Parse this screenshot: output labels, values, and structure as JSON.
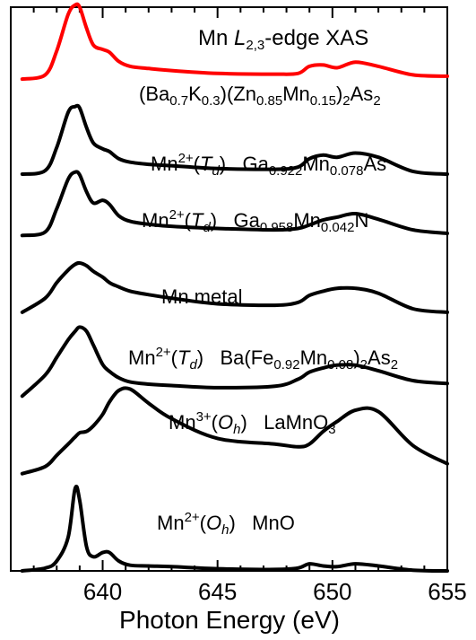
{
  "chart_data": {
    "type": "line",
    "title": {
      "element": "Mn",
      "edge_symbol": "L",
      "edge_sub": "2,3",
      "suffix": "-edge XAS"
    },
    "xlabel": "Photon Energy (eV)",
    "ylabel": "",
    "xlim": [
      636,
      655
    ],
    "ylim": [
      0,
      8
    ],
    "yticks_shown": false,
    "xticks": [
      640,
      645,
      650,
      655
    ],
    "xtick_labels": [
      "640",
      "645",
      "650",
      "655"
    ],
    "x": [
      636.5,
      637.5,
      638.0,
      638.5,
      638.8,
      639.0,
      639.3,
      639.6,
      640.0,
      640.3,
      640.7,
      641.2,
      642.0,
      643.0,
      645.0,
      647.5,
      648.5,
      649.0,
      649.6,
      650.2,
      651.0,
      652.0,
      653.5,
      655.0
    ],
    "series": [
      {
        "name": "(Ba0.7K0.3)(Zn0.85Mn0.15)2As2",
        "color": "#ff0000",
        "offset": 6.98,
        "values": [
          0.0,
          0.06,
          0.4,
          0.92,
          1.05,
          1.02,
          0.72,
          0.48,
          0.42,
          0.38,
          0.25,
          0.18,
          0.15,
          0.12,
          0.08,
          0.07,
          0.08,
          0.18,
          0.2,
          0.16,
          0.24,
          0.18,
          0.06,
          0.04
        ]
      },
      {
        "name": "Ga0.922Mn0.078As",
        "color": "#000000",
        "offset": 5.63,
        "values": [
          0.0,
          0.05,
          0.38,
          0.88,
          0.96,
          0.94,
          0.66,
          0.44,
          0.36,
          0.32,
          0.22,
          0.17,
          0.14,
          0.12,
          0.08,
          0.07,
          0.1,
          0.22,
          0.27,
          0.24,
          0.3,
          0.24,
          0.04,
          0.0
        ]
      },
      {
        "name": "Ga0.958Mn0.042N",
        "color": "#000000",
        "offset": 4.76,
        "values": [
          0.0,
          0.05,
          0.38,
          0.8,
          0.9,
          0.86,
          0.62,
          0.46,
          0.5,
          0.44,
          0.28,
          0.2,
          0.16,
          0.13,
          0.1,
          0.08,
          0.1,
          0.15,
          0.22,
          0.26,
          0.31,
          0.23,
          0.08,
          0.03
        ]
      },
      {
        "name": "Mn metal",
        "color": "#000000",
        "offset": 3.67,
        "values": [
          0.0,
          0.2,
          0.42,
          0.6,
          0.68,
          0.7,
          0.66,
          0.58,
          0.5,
          0.42,
          0.36,
          0.3,
          0.25,
          0.2,
          0.12,
          0.1,
          0.14,
          0.24,
          0.3,
          0.34,
          0.34,
          0.27,
          0.05,
          0.0
        ]
      },
      {
        "name": "Ba(Fe0.92Mn0.08)2As2",
        "color": "#000000",
        "offset": 2.48,
        "values": [
          0.0,
          0.3,
          0.55,
          0.8,
          0.92,
          0.98,
          0.92,
          0.72,
          0.45,
          0.35,
          0.26,
          0.2,
          0.17,
          0.15,
          0.12,
          0.14,
          0.24,
          0.34,
          0.4,
          0.44,
          0.44,
          0.36,
          0.22,
          0.18
        ]
      },
      {
        "name": "LaMnO3",
        "color": "#000000",
        "offset": 1.38,
        "values": [
          0.0,
          0.1,
          0.26,
          0.42,
          0.52,
          0.58,
          0.6,
          0.68,
          0.84,
          1.02,
          1.18,
          1.2,
          1.0,
          0.78,
          0.5,
          0.42,
          0.38,
          0.42,
          0.6,
          0.74,
          0.9,
          0.88,
          0.4,
          0.14
        ]
      },
      {
        "name": "MnO",
        "color": "#000000",
        "offset": 0.0,
        "values": [
          0.0,
          0.04,
          0.14,
          0.48,
          1.17,
          1.0,
          0.34,
          0.2,
          0.26,
          0.26,
          0.14,
          0.08,
          0.07,
          0.06,
          0.03,
          0.02,
          0.04,
          0.1,
          0.07,
          0.06,
          0.1,
          0.07,
          0.01,
          0.0
        ]
      }
    ],
    "annotations": [
      {
        "parts": [
          {
            "t": "(Ba"
          },
          {
            "t": "0.7",
            "k": "sub"
          },
          {
            "t": "K"
          },
          {
            "t": "0.3",
            "k": "sub"
          },
          {
            "t": ")(Zn"
          },
          {
            "t": "0.85",
            "k": "sub"
          },
          {
            "t": "Mn"
          },
          {
            "t": "0.15",
            "k": "sub"
          },
          {
            "t": ")"
          },
          {
            "t": "2",
            "k": "sub"
          },
          {
            "t": "As"
          },
          {
            "t": "2",
            "k": "sub"
          }
        ]
      },
      {
        "parts": [
          {
            "t": "Mn"
          },
          {
            "t": "2+",
            "k": "sup"
          },
          {
            "t": "("
          },
          {
            "t": "T",
            "k": "it"
          },
          {
            "t": "d",
            "k": "itsub"
          },
          {
            "t": ")   Ga"
          },
          {
            "t": "0.922",
            "k": "sub"
          },
          {
            "t": "Mn"
          },
          {
            "t": "0.078",
            "k": "sub"
          },
          {
            "t": "As"
          }
        ]
      },
      {
        "parts": [
          {
            "t": "Mn"
          },
          {
            "t": "2+",
            "k": "sup"
          },
          {
            "t": "("
          },
          {
            "t": "T",
            "k": "it"
          },
          {
            "t": "d",
            "k": "itsub"
          },
          {
            "t": ")   Ga"
          },
          {
            "t": "0.958",
            "k": "sub"
          },
          {
            "t": "Mn"
          },
          {
            "t": "0.042",
            "k": "sub"
          },
          {
            "t": "N"
          }
        ]
      },
      {
        "parts": [
          {
            "t": "Mn metal"
          }
        ]
      },
      {
        "parts": [
          {
            "t": "Mn"
          },
          {
            "t": "2+",
            "k": "sup"
          },
          {
            "t": "("
          },
          {
            "t": "T",
            "k": "it"
          },
          {
            "t": "d",
            "k": "itsub"
          },
          {
            "t": ")   Ba(Fe"
          },
          {
            "t": "0.92",
            "k": "sub"
          },
          {
            "t": "Mn"
          },
          {
            "t": "0.08",
            "k": "sub"
          },
          {
            "t": ")"
          },
          {
            "t": "2",
            "k": "sub"
          },
          {
            "t": "As"
          },
          {
            "t": "2",
            "k": "sub"
          }
        ]
      },
      {
        "parts": [
          {
            "t": "Mn"
          },
          {
            "t": "3+",
            "k": "sup"
          },
          {
            "t": "("
          },
          {
            "t": "O",
            "k": "it"
          },
          {
            "t": "h",
            "k": "itsub"
          },
          {
            "t": ")   LaMnO"
          },
          {
            "t": "3",
            "k": "sub"
          }
        ]
      },
      {
        "parts": [
          {
            "t": "Mn"
          },
          {
            "t": "2+",
            "k": "sup"
          },
          {
            "t": "("
          },
          {
            "t": "O",
            "k": "it"
          },
          {
            "t": "h",
            "k": "itsub"
          },
          {
            "t": ")   MnO"
          }
        ]
      }
    ],
    "grid": false,
    "legend": "none"
  }
}
